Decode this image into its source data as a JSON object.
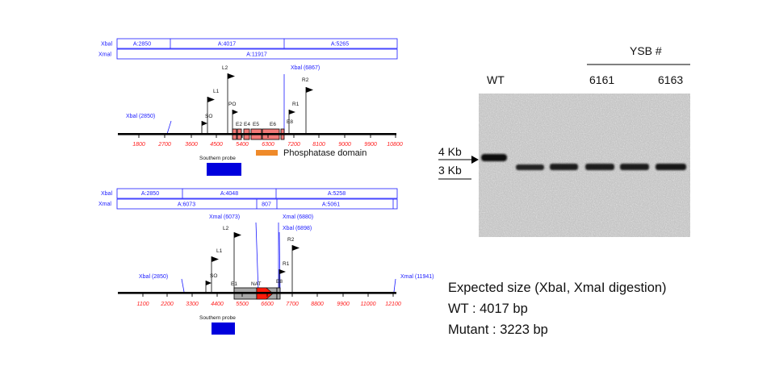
{
  "wt_map": {
    "xbal_track_label": "Xbal",
    "xmal_track_label": "Xmal",
    "xbal_segments": [
      "A:2850",
      "A:4017",
      "A:5265"
    ],
    "xmal_segments": [
      "A:11917"
    ],
    "sites": {
      "left": "Xbal (2850)",
      "right": "Xbal (6867)"
    },
    "primers": [
      "L2",
      "L1",
      "PO",
      "SO",
      "R2",
      "R1"
    ],
    "exons": [
      "E2",
      "E4",
      "E5",
      "E6",
      "E8"
    ],
    "ticks": [
      "1800",
      "2700",
      "3600",
      "4500",
      "5400",
      "6300",
      "7200",
      "8100",
      "9000",
      "9900",
      "10800"
    ],
    "domain_label": "Phosphatase domain",
    "probe_label": "Southern probe"
  },
  "mut_map": {
    "xbal_track_label": "Xbal",
    "xmal_track_label": "Xmal",
    "xbal_segments": [
      "A:2850",
      "A:4048",
      "A:5258"
    ],
    "xmal_segments": [
      "A:6073",
      "807",
      "A:5061"
    ],
    "sites": {
      "left": "Xbal (2850)",
      "xmal1": "Xmal (6073)",
      "xmal2": "Xmal (6880)",
      "xbal2": "Xbal (6898)",
      "right": "Xmal (11941)"
    },
    "primers": [
      "L2",
      "L1",
      "SO",
      "R2",
      "R1"
    ],
    "exons": [
      "E1",
      "E8"
    ],
    "marker": "NAT",
    "ticks": [
      "1100",
      "2200",
      "3300",
      "4400",
      "5500",
      "6600",
      "7700",
      "8800",
      "9900",
      "11000",
      "12100"
    ],
    "probe_label": "Southern probe"
  },
  "gel": {
    "group_label": "YSB #",
    "lanes": [
      "WT",
      "6161",
      "6163"
    ],
    "markers": [
      "4 Kb",
      "3 Kb"
    ]
  },
  "expected": {
    "title": "Expected size (XbaI, XmaI digestion)",
    "wt": "WT : 4017 bp",
    "mutant": "Mutant : 3223 bp"
  },
  "colors": {
    "track_blue": "#1a1aff",
    "tick_red": "#ff1a1a",
    "exon_fill": "#f27a78",
    "domain_orange": "#ef8a2a",
    "probe_blue": "#0000dd",
    "nat_red": "#ff1a0a",
    "cassette_gray": "#a8a8a8"
  }
}
